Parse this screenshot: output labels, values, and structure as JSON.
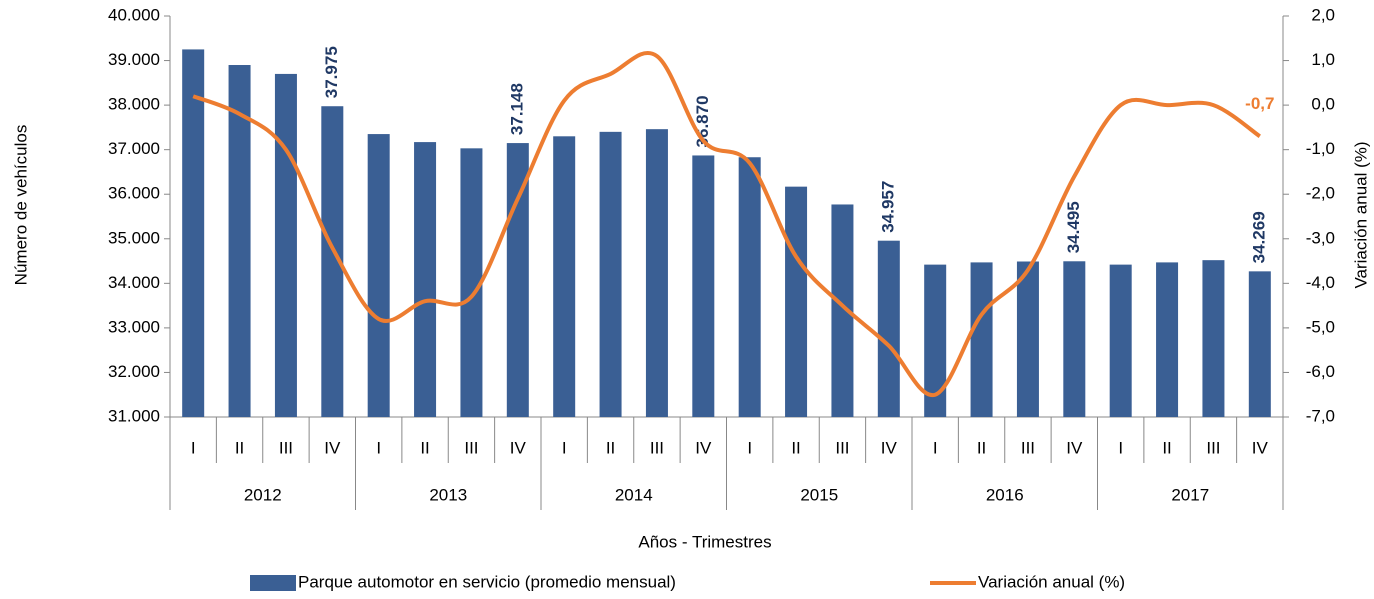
{
  "chart_data": {
    "type": "bar-line",
    "y_label": "Número de vehículos",
    "y2_label": "Variación anual (%)",
    "x_label": "Años - Trimestres",
    "categories": [
      "I",
      "II",
      "III",
      "IV",
      "I",
      "II",
      "III",
      "IV",
      "I",
      "II",
      "III",
      "IV",
      "I",
      "II",
      "III",
      "IV",
      "I",
      "II",
      "III",
      "IV",
      "I",
      "II",
      "III",
      "IV"
    ],
    "groups": [
      "2012",
      "2013",
      "2014",
      "2015",
      "2016",
      "2017"
    ],
    "series": [
      {
        "name": "Parque automotor en servicio (promedio mensual)",
        "color": "#3a5f94",
        "type": "bar",
        "values": [
          39250,
          38900,
          38700,
          37975,
          37350,
          37170,
          37030,
          37148,
          37300,
          37400,
          37460,
          36870,
          36830,
          36170,
          35770,
          34957,
          34420,
          34470,
          34490,
          34495,
          34420,
          34470,
          34520,
          34269
        ],
        "value_labels": [
          null,
          null,
          null,
          "37.975",
          null,
          null,
          null,
          "37.148",
          null,
          null,
          null,
          "36.870",
          null,
          null,
          null,
          "34.957",
          null,
          null,
          null,
          "34.495",
          null,
          null,
          null,
          "34.269"
        ],
        "label_color": "#1f3864"
      },
      {
        "name": "Variación anual (%)",
        "color": "#ed7d31",
        "type": "line",
        "axis": "y2",
        "values": [
          0.2,
          -0.2,
          -1.0,
          -3.2,
          -4.8,
          -4.4,
          -4.3,
          -2.1,
          0.1,
          0.7,
          1.1,
          -0.8,
          -1.3,
          -3.4,
          -4.5,
          -5.4,
          -6.5,
          -4.7,
          -3.7,
          -1.6,
          0.0,
          0.0,
          0.0,
          -0.7
        ],
        "value_labels": [
          null,
          null,
          null,
          null,
          null,
          null,
          null,
          null,
          null,
          null,
          null,
          null,
          null,
          null,
          null,
          null,
          null,
          null,
          null,
          null,
          null,
          null,
          null,
          "-0,7"
        ]
      }
    ],
    "ylim": [
      31000,
      40000
    ],
    "yticks": [
      {
        "value": 31000,
        "label": "31.000"
      },
      {
        "value": 32000,
        "label": "32.000"
      },
      {
        "value": 33000,
        "label": "33.000"
      },
      {
        "value": 34000,
        "label": "34.000"
      },
      {
        "value": 35000,
        "label": "35.000"
      },
      {
        "value": 36000,
        "label": "36.000"
      },
      {
        "value": 37000,
        "label": "37.000"
      },
      {
        "value": 38000,
        "label": "38.000"
      },
      {
        "value": 39000,
        "label": "39.000"
      },
      {
        "value": 40000,
        "label": "40.000"
      }
    ],
    "y2lim": [
      -7,
      2
    ],
    "y2ticks": [
      {
        "value": -7,
        "label": "-7,0"
      },
      {
        "value": -6,
        "label": "-6,0"
      },
      {
        "value": -5,
        "label": "-5,0"
      },
      {
        "value": -4,
        "label": "-4,0"
      },
      {
        "value": -3,
        "label": "-3,0"
      },
      {
        "value": -2,
        "label": "-2,0"
      },
      {
        "value": -1,
        "label": "-1,0"
      },
      {
        "value": 0,
        "label": "0,0"
      },
      {
        "value": 1,
        "label": "1,0"
      },
      {
        "value": 2,
        "label": "2,0"
      }
    ],
    "legend": "bottom"
  }
}
